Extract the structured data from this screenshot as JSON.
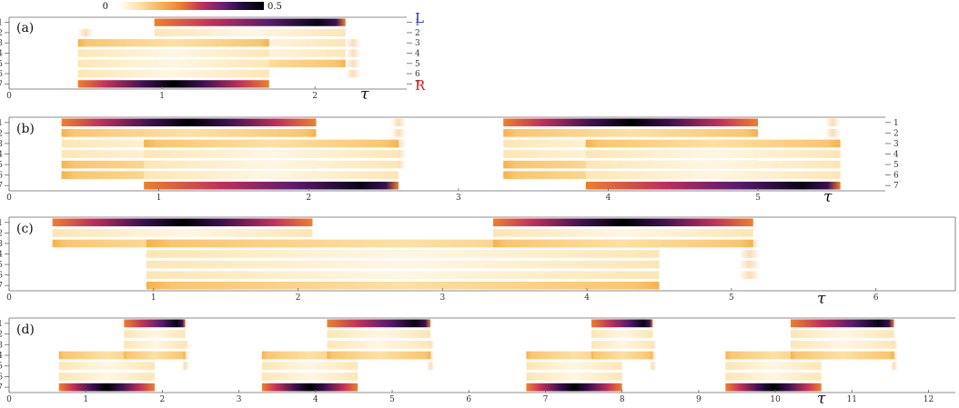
{
  "colors": {
    "L": "#2b2bd6",
    "R": "#d62020",
    "axis": "#666666",
    "colormap": [
      "#ffffff",
      "#fde3a6",
      "#fbb45a",
      "#f07f2a",
      "#c2305a",
      "#6e1e7a",
      "#210c3a",
      "#000000"
    ]
  },
  "colorbar": {
    "min_label": "0",
    "max_label": "0.5",
    "vmin": 0,
    "vmax": 0.5
  },
  "chart_data": [
    {
      "type": "heatmap",
      "panel_label": "(a)",
      "xlabel": "τ",
      "xlim": [
        0,
        2.6
      ],
      "xticks": [
        "0",
        "1",
        "2"
      ],
      "xtick_values": [
        0,
        1,
        2
      ],
      "yticks_left": [
        "1",
        "2",
        "3",
        "4",
        "5",
        "6",
        "7"
      ],
      "yticks_right": [
        "1",
        "2",
        "3",
        "4",
        "5",
        "6",
        "7"
      ],
      "top_site_label": "L",
      "bottom_site_label": "R",
      "blocks": [
        {
          "x": [
            0.95,
            2.2
          ],
          "rows_from": 1,
          "rows_to": 5,
          "top_profile": "ramp",
          "bottom_profile": "flat"
        },
        {
          "x": [
            0.45,
            1.7
          ],
          "rows_from": 3,
          "rows_to": 7,
          "top_profile": "flat",
          "bottom_profile": "hump"
        }
      ],
      "fades": [
        {
          "x": [
            0.45,
            0.55
          ],
          "rows": [
            2,
            5
          ]
        },
        {
          "x": [
            2.2,
            2.3
          ],
          "rows": [
            3,
            6
          ]
        }
      ]
    },
    {
      "type": "heatmap",
      "panel_label": "(b)",
      "xlabel": "τ",
      "xlim": [
        0,
        5.85
      ],
      "xticks": [
        "0",
        "1",
        "2",
        "3",
        "4",
        "5"
      ],
      "xtick_values": [
        0,
        1,
        2,
        3,
        4,
        5
      ],
      "yticks_left": [
        "1",
        "2",
        "3",
        "4",
        "5",
        "6",
        "7"
      ],
      "yticks_right": [
        "1",
        "2",
        "3",
        "4",
        "5",
        "6",
        "7"
      ],
      "blocks": [
        {
          "x": [
            0.35,
            2.05
          ],
          "rows_from": 1,
          "rows_to": 6,
          "top_profile": "hump",
          "bottom_profile": "flat"
        },
        {
          "x": [
            0.9,
            2.6
          ],
          "rows_from": 3,
          "rows_to": 7,
          "top_profile": "flat",
          "bottom_profile": "ramp"
        },
        {
          "x": [
            3.3,
            5.0
          ],
          "rows_from": 1,
          "rows_to": 6,
          "top_profile": "hump",
          "bottom_profile": "flat"
        },
        {
          "x": [
            3.85,
            5.55
          ],
          "rows_from": 3,
          "rows_to": 7,
          "top_profile": "flat",
          "bottom_profile": "ramp"
        }
      ],
      "fades": [
        {
          "x": [
            0.35,
            0.45
          ],
          "rows": [
            2,
            6
          ]
        },
        {
          "x": [
            2.55,
            2.65
          ],
          "rows": [
            1,
            5
          ]
        },
        {
          "x": [
            3.3,
            3.4
          ],
          "rows": [
            2,
            6
          ]
        },
        {
          "x": [
            5.45,
            5.55
          ],
          "rows": [
            1,
            5
          ]
        }
      ]
    },
    {
      "type": "heatmap",
      "panel_label": "(c)",
      "xlabel": "τ",
      "xlim": [
        0,
        6.55
      ],
      "xticks": [
        "0",
        "1",
        "2",
        "3",
        "4",
        "5",
        "6"
      ],
      "xtick_values": [
        0,
        1,
        2,
        3,
        4,
        5,
        6
      ],
      "yticks_left": [
        "1",
        "2",
        "3",
        "4",
        "5",
        "6",
        "7"
      ],
      "blocks": [
        {
          "x": [
            0.3,
            2.1
          ],
          "rows_from": 1,
          "rows_to": 3,
          "top_profile": "hump",
          "bottom_profile": "flat"
        },
        {
          "x": [
            0.95,
            4.5
          ],
          "rows_from": 3,
          "rows_to": 7,
          "top_profile": "flat",
          "bottom_profile": "flat"
        },
        {
          "x": [
            3.35,
            5.15
          ],
          "rows_from": 1,
          "rows_to": 3,
          "top_profile": "hump",
          "bottom_profile": "flat"
        }
      ],
      "fades": [
        {
          "x": [
            2.1,
            3.35
          ],
          "rows": [
            3,
            4
          ]
        },
        {
          "x": [
            5.05,
            5.2
          ],
          "rows": [
            3,
            6
          ]
        }
      ]
    },
    {
      "type": "heatmap",
      "panel_label": "(d)",
      "xlabel": "τ",
      "xlim": [
        0,
        12.35
      ],
      "xticks": [
        "0",
        "1",
        "2",
        "3",
        "4",
        "5",
        "6",
        "7",
        "8",
        "9",
        "10",
        "11",
        "12"
      ],
      "xtick_values": [
        0,
        1,
        2,
        3,
        4,
        5,
        6,
        7,
        8,
        9,
        10,
        11,
        12
      ],
      "yticks_left": [
        "1",
        "2",
        "3",
        "4",
        "5",
        "6",
        "7"
      ],
      "blocks": [
        {
          "x": [
            0.65,
            1.9
          ],
          "rows_from": 4,
          "rows_to": 7,
          "top_profile": "flat",
          "bottom_profile": "hump"
        },
        {
          "x": [
            1.5,
            2.3
          ],
          "rows_from": 1,
          "rows_to": 4,
          "top_profile": "ramp",
          "bottom_profile": "flat"
        },
        {
          "x": [
            3.3,
            4.55
          ],
          "rows_from": 4,
          "rows_to": 7,
          "top_profile": "flat",
          "bottom_profile": "hump"
        },
        {
          "x": [
            4.15,
            5.5
          ],
          "rows_from": 1,
          "rows_to": 4,
          "top_profile": "ramp",
          "bottom_profile": "flat"
        },
        {
          "x": [
            6.75,
            8.0
          ],
          "rows_from": 4,
          "rows_to": 7,
          "top_profile": "flat",
          "bottom_profile": "hump"
        },
        {
          "x": [
            7.6,
            8.4
          ],
          "rows_from": 1,
          "rows_to": 4,
          "top_profile": "ramp",
          "bottom_profile": "flat"
        },
        {
          "x": [
            9.35,
            10.6
          ],
          "rows_from": 4,
          "rows_to": 7,
          "top_profile": "flat",
          "bottom_profile": "hump"
        },
        {
          "x": [
            10.2,
            11.55
          ],
          "rows_from": 1,
          "rows_to": 4,
          "top_profile": "ramp",
          "bottom_profile": "flat"
        }
      ],
      "fades": [
        {
          "x": [
            0.65,
            0.75
          ],
          "rows": [
            4,
            6
          ]
        },
        {
          "x": [
            3.3,
            3.4
          ],
          "rows": [
            4,
            6
          ]
        },
        {
          "x": [
            6.75,
            6.85
          ],
          "rows": [
            4,
            6
          ]
        },
        {
          "x": [
            9.35,
            9.45
          ],
          "rows": [
            4,
            6
          ]
        },
        {
          "x": [
            2.25,
            2.35
          ],
          "rows": [
            3,
            5
          ]
        },
        {
          "x": [
            5.45,
            5.55
          ],
          "rows": [
            3,
            5
          ]
        },
        {
          "x": [
            8.35,
            8.45
          ],
          "rows": [
            3,
            5
          ]
        },
        {
          "x": [
            11.5,
            11.6
          ],
          "rows": [
            3,
            5
          ]
        }
      ]
    }
  ]
}
